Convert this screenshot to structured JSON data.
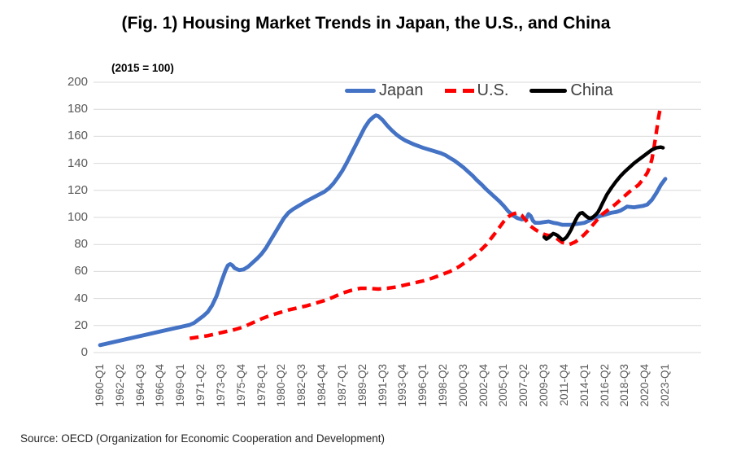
{
  "title": "(Fig. 1) Housing Market Trends in Japan, the U.S., and China",
  "note": "(2015 = 100)",
  "source": "Source: OECD (Organization for Economic Cooperation and Development)",
  "chart_data": {
    "type": "line",
    "title": "(Fig. 1) Housing Market Trends in Japan, the U.S., and China",
    "index_note": "(2015 = 100)",
    "x_unit": "quarters, index 0 = 1960-Q1, one point per quarter",
    "x_range_quarters": [
      0,
      252
    ],
    "x_tick_step_quarters": 9,
    "x_tick_labels": [
      "1960-Q1",
      "1962-Q2",
      "1964-Q3",
      "1966-Q4",
      "1969-Q1",
      "1971-Q2",
      "1973-Q3",
      "1975-Q4",
      "1978-Q1",
      "1980-Q2",
      "1982-Q3",
      "1984-Q4",
      "1987-Q1",
      "1989-Q2",
      "1991-Q3",
      "1993-Q4",
      "1996-Q1",
      "1998-Q2",
      "2000-Q3",
      "2002-Q4",
      "2005-Q1",
      "2007-Q2",
      "2009-Q3",
      "2011-Q4",
      "2014-Q1",
      "2016-Q2",
      "2018-Q3",
      "2020-Q4",
      "2023-Q1"
    ],
    "ylim": [
      0,
      200
    ],
    "y_tick_step": 20,
    "y_tick_labels": [
      "0",
      "20",
      "40",
      "60",
      "80",
      "100",
      "120",
      "140",
      "160",
      "180",
      "200"
    ],
    "grid": "horizontal-only",
    "grid_color": "#D9D9D9",
    "axis_text_color": "#595959",
    "legend_position": "top-center-inside",
    "legend_text_color": "#404040",
    "series": [
      {
        "name": "Japan",
        "color": "#4472C4",
        "style": "solid",
        "points": [
          [
            0,
            5.5
          ],
          [
            4,
            7
          ],
          [
            8,
            8.5
          ],
          [
            12,
            10
          ],
          [
            16,
            11.5
          ],
          [
            20,
            13
          ],
          [
            24,
            14.5
          ],
          [
            28,
            16
          ],
          [
            32,
            17.5
          ],
          [
            36,
            19
          ],
          [
            40,
            20.5
          ],
          [
            42,
            22
          ],
          [
            44,
            24.5
          ],
          [
            46,
            27
          ],
          [
            48,
            30
          ],
          [
            50,
            35
          ],
          [
            52,
            42
          ],
          [
            54,
            52
          ],
          [
            56,
            61
          ],
          [
            57,
            64.5
          ],
          [
            58,
            65.5
          ],
          [
            59,
            64.5
          ],
          [
            60,
            62.5
          ],
          [
            62,
            61
          ],
          [
            64,
            61.5
          ],
          [
            66,
            63.5
          ],
          [
            68,
            66.5
          ],
          [
            70,
            69.5
          ],
          [
            72,
            73
          ],
          [
            74,
            77.5
          ],
          [
            76,
            83
          ],
          [
            78,
            88.5
          ],
          [
            80,
            94
          ],
          [
            82,
            99.5
          ],
          [
            84,
            103.5
          ],
          [
            86,
            106
          ],
          [
            88,
            108
          ],
          [
            90,
            110
          ],
          [
            92,
            112
          ],
          [
            96,
            115.5
          ],
          [
            100,
            119
          ],
          [
            102,
            121.5
          ],
          [
            104,
            125
          ],
          [
            106,
            129.5
          ],
          [
            108,
            134.5
          ],
          [
            110,
            140.5
          ],
          [
            112,
            147
          ],
          [
            114,
            153.5
          ],
          [
            116,
            160
          ],
          [
            118,
            166.5
          ],
          [
            120,
            171.5
          ],
          [
            122,
            174.5
          ],
          [
            123,
            175.5
          ],
          [
            124,
            175
          ],
          [
            126,
            172
          ],
          [
            128,
            168
          ],
          [
            130,
            164.5
          ],
          [
            132,
            161.5
          ],
          [
            134,
            159
          ],
          [
            136,
            157
          ],
          [
            138,
            155.5
          ],
          [
            140,
            154
          ],
          [
            144,
            151.5
          ],
          [
            148,
            149.5
          ],
          [
            152,
            147.5
          ],
          [
            154,
            146
          ],
          [
            156,
            144
          ],
          [
            158,
            142
          ],
          [
            160,
            139.5
          ],
          [
            162,
            137
          ],
          [
            164,
            134
          ],
          [
            166,
            131
          ],
          [
            168,
            127.5
          ],
          [
            170,
            124.5
          ],
          [
            172,
            121
          ],
          [
            174,
            118
          ],
          [
            176,
            115
          ],
          [
            178,
            112
          ],
          [
            180,
            108.5
          ],
          [
            182,
            104.5
          ],
          [
            184,
            101.5
          ],
          [
            186,
            99.5
          ],
          [
            188,
            98.5
          ],
          [
            190,
            99
          ],
          [
            191,
            102.5
          ],
          [
            192,
            101
          ],
          [
            193,
            97.5
          ],
          [
            194,
            96
          ],
          [
            196,
            96
          ],
          [
            198,
            96.5
          ],
          [
            200,
            97
          ],
          [
            202,
            96
          ],
          [
            204,
            95.5
          ],
          [
            206,
            94.5
          ],
          [
            208,
            94.5
          ],
          [
            210,
            94.5
          ],
          [
            212,
            95
          ],
          [
            214,
            95.5
          ],
          [
            216,
            96
          ],
          [
            218,
            97.5
          ],
          [
            220,
            99.5
          ],
          [
            222,
            100.5
          ],
          [
            224,
            101.5
          ],
          [
            226,
            102.5
          ],
          [
            228,
            103.5
          ],
          [
            230,
            104
          ],
          [
            232,
            105
          ],
          [
            234,
            107
          ],
          [
            235,
            108
          ],
          [
            238,
            107.5
          ],
          [
            240,
            108
          ],
          [
            242,
            108.5
          ],
          [
            244,
            109.5
          ],
          [
            246,
            113
          ],
          [
            248,
            118
          ],
          [
            250,
            124
          ],
          [
            252,
            128.5
          ]
        ]
      },
      {
        "name": "U.S.",
        "color": "#FF0000",
        "style": "dashed",
        "points": [
          [
            40,
            10.5
          ],
          [
            44,
            11.5
          ],
          [
            48,
            12.5
          ],
          [
            52,
            14
          ],
          [
            56,
            15.5
          ],
          [
            60,
            17
          ],
          [
            64,
            19
          ],
          [
            68,
            22
          ],
          [
            72,
            25
          ],
          [
            76,
            27.5
          ],
          [
            80,
            29.5
          ],
          [
            84,
            31.5
          ],
          [
            88,
            33
          ],
          [
            92,
            34.5
          ],
          [
            96,
            36.5
          ],
          [
            100,
            38.5
          ],
          [
            104,
            41
          ],
          [
            108,
            44
          ],
          [
            112,
            46
          ],
          [
            116,
            47.5
          ],
          [
            120,
            47.5
          ],
          [
            124,
            47
          ],
          [
            128,
            47.5
          ],
          [
            132,
            48.5
          ],
          [
            136,
            50
          ],
          [
            140,
            51.5
          ],
          [
            144,
            53
          ],
          [
            148,
            55
          ],
          [
            152,
            57.5
          ],
          [
            156,
            60
          ],
          [
            160,
            63.5
          ],
          [
            164,
            68
          ],
          [
            168,
            73
          ],
          [
            172,
            79.5
          ],
          [
            176,
            88
          ],
          [
            180,
            97
          ],
          [
            182,
            100.5
          ],
          [
            184,
            102.5
          ],
          [
            186,
            103.5
          ],
          [
            188,
            101.5
          ],
          [
            190,
            97.5
          ],
          [
            192,
            93.5
          ],
          [
            194,
            91
          ],
          [
            196,
            89
          ],
          [
            198,
            87.5
          ],
          [
            200,
            86.5
          ],
          [
            201,
            87
          ],
          [
            202,
            86
          ],
          [
            204,
            84
          ],
          [
            206,
            81.5
          ],
          [
            208,
            80.5
          ],
          [
            209,
            80
          ],
          [
            210,
            80.5
          ],
          [
            212,
            82
          ],
          [
            214,
            84.5
          ],
          [
            216,
            87.5
          ],
          [
            218,
            91
          ],
          [
            220,
            95
          ],
          [
            222,
            99
          ],
          [
            224,
            102.5
          ],
          [
            226,
            105
          ],
          [
            228,
            107.5
          ],
          [
            230,
            110
          ],
          [
            232,
            113
          ],
          [
            234,
            116
          ],
          [
            236,
            119
          ],
          [
            238,
            121.5
          ],
          [
            240,
            124
          ],
          [
            242,
            128
          ],
          [
            244,
            133
          ],
          [
            245,
            137
          ],
          [
            246,
            143
          ],
          [
            247,
            152
          ],
          [
            248,
            163
          ],
          [
            249,
            174
          ],
          [
            250,
            183
          ]
        ]
      },
      {
        "name": "China",
        "color": "#000000",
        "style": "solid",
        "points": [
          [
            198,
            85.5
          ],
          [
            199,
            84
          ],
          [
            200,
            85
          ],
          [
            201,
            86.5
          ],
          [
            202,
            88
          ],
          [
            203,
            87.5
          ],
          [
            204,
            86.5
          ],
          [
            205,
            85
          ],
          [
            206,
            83.5
          ],
          [
            207,
            84
          ],
          [
            208,
            85.5
          ],
          [
            209,
            88
          ],
          [
            210,
            91
          ],
          [
            211,
            94.5
          ],
          [
            212,
            98
          ],
          [
            213,
            101
          ],
          [
            214,
            103
          ],
          [
            215,
            103.5
          ],
          [
            216,
            102
          ],
          [
            217,
            100.5
          ],
          [
            218,
            99.5
          ],
          [
            219,
            99.5
          ],
          [
            220,
            100.5
          ],
          [
            221,
            102
          ],
          [
            222,
            104
          ],
          [
            223,
            107
          ],
          [
            224,
            110.5
          ],
          [
            226,
            117
          ],
          [
            228,
            122
          ],
          [
            230,
            126.5
          ],
          [
            232,
            130.5
          ],
          [
            234,
            134
          ],
          [
            236,
            137
          ],
          [
            238,
            140
          ],
          [
            240,
            142.5
          ],
          [
            242,
            145
          ],
          [
            244,
            147.5
          ],
          [
            246,
            150
          ],
          [
            248,
            151.5
          ],
          [
            250,
            152
          ],
          [
            251,
            151.5
          ]
        ]
      }
    ]
  }
}
